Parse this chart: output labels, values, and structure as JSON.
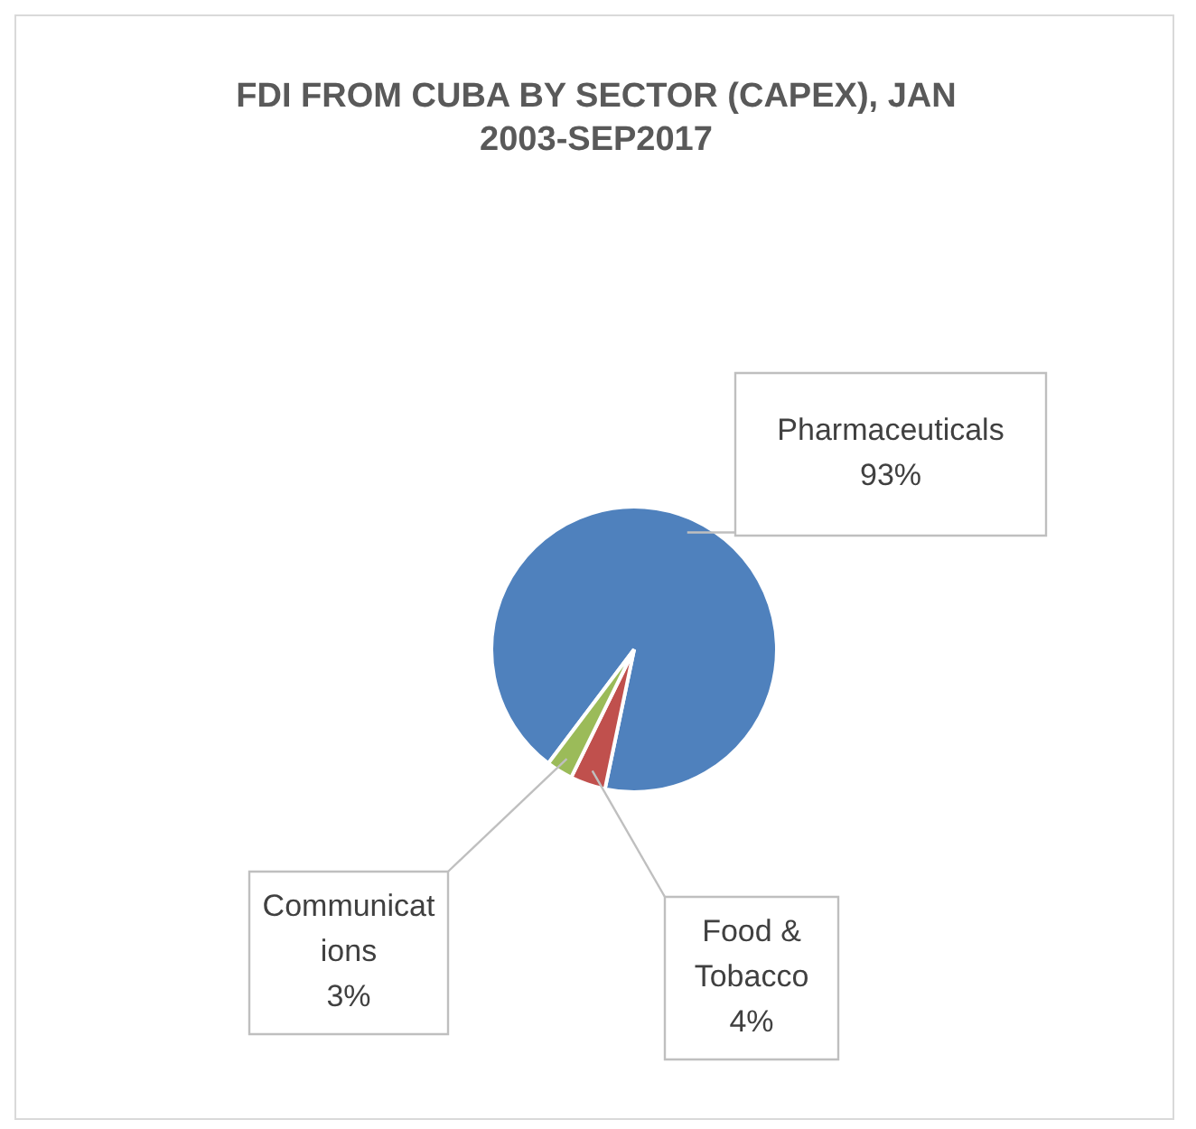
{
  "chart_data": {
    "type": "pie",
    "title": "FDI FROM CUBA BY SECTOR (CAPEX), JAN 2003-SEP2017",
    "categories": [
      "Pharmaceuticals",
      "Food & Tobacco",
      "Communications"
    ],
    "values": [
      93,
      4,
      3
    ],
    "value_labels": [
      "93%",
      "4%",
      "3%"
    ],
    "colors": [
      "#4f81bd",
      "#c0504d",
      "#9bbb59"
    ],
    "legend": false
  }
}
